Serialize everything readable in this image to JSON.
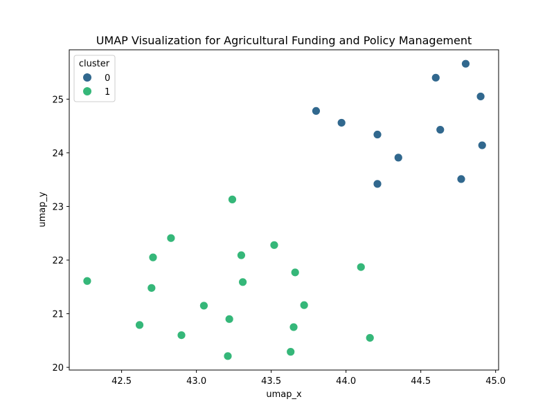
{
  "chart_data": {
    "type": "scatter",
    "title": "UMAP Visualization for Agricultural Funding and Policy Management",
    "xlabel": "umap_x",
    "ylabel": "umap_y",
    "xlim": [
      42.15,
      45.02
    ],
    "ylim": [
      19.95,
      25.92
    ],
    "xticks": [
      "42.5",
      "43.0",
      "43.5",
      "44.0",
      "44.5",
      "45.0"
    ],
    "yticks": [
      "20",
      "21",
      "22",
      "23",
      "24",
      "25"
    ],
    "grid": false,
    "legend": {
      "title": "cluster",
      "placement": "top-left"
    },
    "series": [
      {
        "name": "0",
        "color": "#31688e",
        "points": [
          [
            44.8,
            25.66
          ],
          [
            44.6,
            25.4
          ],
          [
            44.9,
            25.05
          ],
          [
            43.8,
            24.78
          ],
          [
            43.97,
            24.56
          ],
          [
            44.63,
            24.43
          ],
          [
            44.21,
            24.34
          ],
          [
            44.91,
            24.14
          ],
          [
            44.35,
            23.91
          ],
          [
            44.77,
            23.51
          ],
          [
            44.21,
            23.42
          ]
        ]
      },
      {
        "name": "1",
        "color": "#35b779",
        "points": [
          [
            43.24,
            23.13
          ],
          [
            42.83,
            22.41
          ],
          [
            43.52,
            22.28
          ],
          [
            43.3,
            22.09
          ],
          [
            42.71,
            22.05
          ],
          [
            44.1,
            21.87
          ],
          [
            43.66,
            21.77
          ],
          [
            42.27,
            21.61
          ],
          [
            43.31,
            21.59
          ],
          [
            42.7,
            21.48
          ],
          [
            43.72,
            21.16
          ],
          [
            43.05,
            21.15
          ],
          [
            43.22,
            20.9
          ],
          [
            42.62,
            20.79
          ],
          [
            43.65,
            20.75
          ],
          [
            42.9,
            20.6
          ],
          [
            44.16,
            20.55
          ],
          [
            43.63,
            20.29
          ],
          [
            43.21,
            20.21
          ]
        ]
      }
    ]
  }
}
